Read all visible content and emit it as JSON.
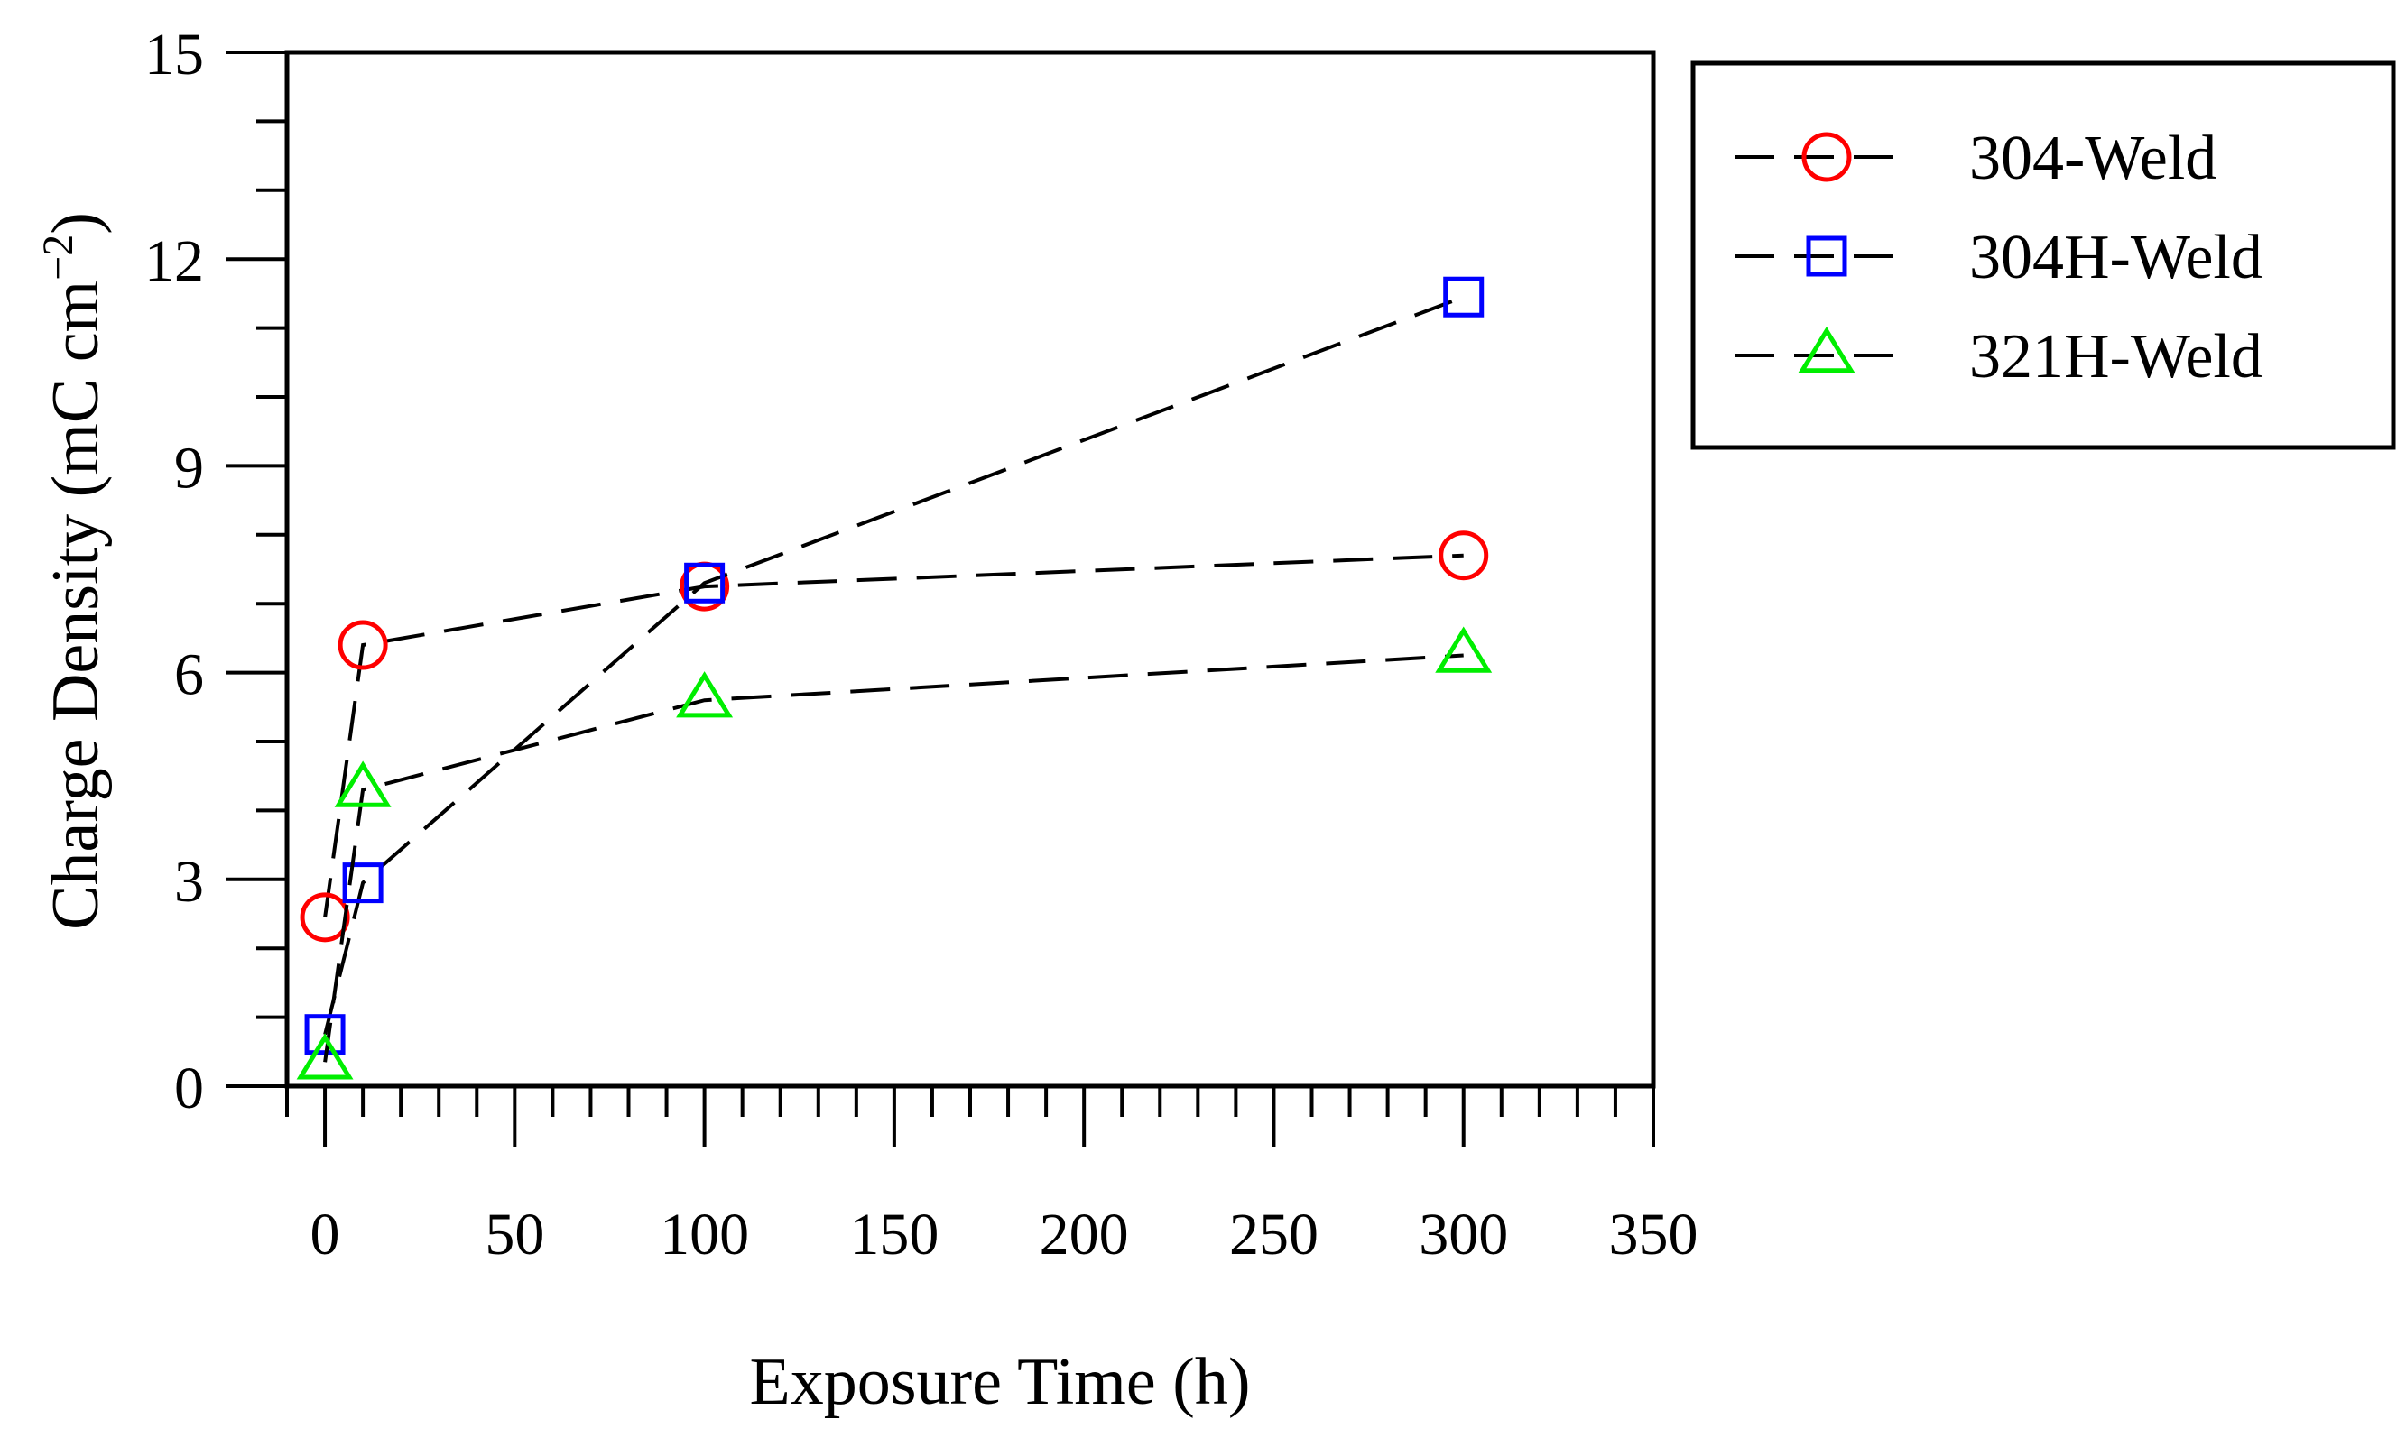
{
  "chart_data": {
    "type": "line",
    "xlabel": "Exposure Time (h)",
    "ylabel": {
      "base": "Charge Density (mC cm",
      "superscript": "−2",
      "closing": ")"
    },
    "xlim": [
      -10,
      350
    ],
    "ylim": [
      0,
      15
    ],
    "xticks": [
      "0",
      "50",
      "100",
      "150",
      "200",
      "250",
      "300",
      "350"
    ],
    "yticks": [
      "0",
      "3",
      "6",
      "9",
      "12",
      "15"
    ],
    "grid": false,
    "legend_position": "top-right outside",
    "series": [
      {
        "name": "304-Weld",
        "marker": "circle",
        "color": "#ff0000",
        "x": [
          0,
          10,
          100,
          300
        ],
        "y": [
          2.45,
          6.4,
          7.25,
          7.7
        ]
      },
      {
        "name": "304H-Weld",
        "marker": "square",
        "color": "#0000ff",
        "x": [
          0,
          10,
          100,
          300
        ],
        "y": [
          0.75,
          2.95,
          7.3,
          11.45
        ]
      },
      {
        "name": "321H-Weld",
        "marker": "triangle",
        "color": "#00ee00",
        "x": [
          0,
          10,
          100,
          300
        ],
        "y": [
          0.35,
          4.3,
          5.6,
          6.25
        ]
      }
    ]
  }
}
